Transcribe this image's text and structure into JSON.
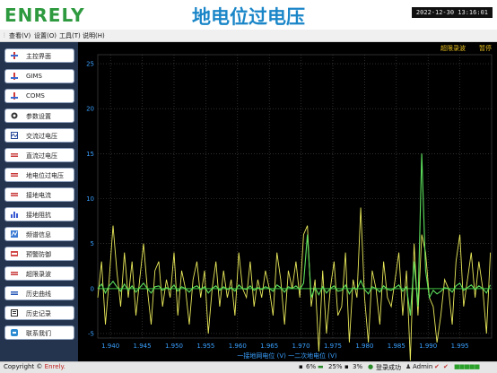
{
  "header": {
    "logo_text": "ENRELY",
    "title": "地电位过电压",
    "clock": "2022-12-30  13:16:01"
  },
  "menubar": {
    "items": [
      "查看(V)",
      "设置(O)",
      "工具(T)",
      "说明(H)"
    ]
  },
  "sidebar": {
    "items": [
      {
        "label": "主控界面",
        "icon": "monitor-icon"
      },
      {
        "label": "GIMS",
        "icon": "gims-icon"
      },
      {
        "label": "COMS",
        "icon": "coms-icon"
      },
      {
        "label": "参数设置",
        "icon": "gear-icon"
      },
      {
        "label": "交流过电压",
        "icon": "ac-overvoltage-icon"
      },
      {
        "label": "直流过电压",
        "icon": "dc-overvoltage-icon"
      },
      {
        "label": "地电位过电压",
        "icon": "ground-potential-icon"
      },
      {
        "label": "接地电流",
        "icon": "ground-current-icon"
      },
      {
        "label": "接地阻抗",
        "icon": "bar-chart-icon"
      },
      {
        "label": "频谱信息",
        "icon": "spectrum-icon"
      },
      {
        "label": "预警防御",
        "icon": "alert-icon"
      },
      {
        "label": "超限录波",
        "icon": "record-icon"
      },
      {
        "label": "历史曲线",
        "icon": "history-curve-icon"
      },
      {
        "label": "历史记录",
        "icon": "history-record-icon"
      },
      {
        "label": "联系我们",
        "icon": "contact-icon"
      }
    ]
  },
  "chart_controls": {
    "record_label": "超限录波",
    "pause_label": "暂停"
  },
  "chart_data": {
    "type": "line",
    "xlabel": "一接地网电位 (V)  一二次地电位 (V)",
    "xlim": [
      1.938,
      2.0
    ],
    "ylim": [
      -5.5,
      26
    ],
    "x_ticks": [
      "1.940",
      "1.945",
      "1.950",
      "1.955",
      "1.960",
      "1.965",
      "1.970",
      "1.975",
      "1.980",
      "1.985",
      "1.990",
      "1.995"
    ],
    "y_ticks": [
      "-5",
      "0",
      "5",
      "10",
      "15",
      "20",
      "25"
    ],
    "grid": true,
    "colors": {
      "background": "#000000",
      "grid": "#4a4a4a",
      "axis_text": "#3aa0ff",
      "series1": "#e8e85a",
      "series2": "#5ce05c",
      "zero": "#3fc03f"
    },
    "series": [
      {
        "x": [
          1.938,
          1.9386,
          1.9392,
          1.9398,
          1.9404,
          1.941,
          1.9416,
          1.9422,
          1.9428,
          1.9434,
          1.944,
          1.9446,
          1.9452,
          1.9458,
          1.9464,
          1.947,
          1.9476,
          1.9482,
          1.9488,
          1.9494,
          1.95,
          1.9506,
          1.9512,
          1.9518,
          1.9524,
          1.953,
          1.9536,
          1.9542,
          1.9548,
          1.9554,
          1.956,
          1.9566,
          1.9572,
          1.9578,
          1.9584,
          1.959,
          1.9596,
          1.9602,
          1.9608,
          1.9614,
          1.962,
          1.9626,
          1.9632,
          1.9638,
          1.9644,
          1.965,
          1.9656,
          1.9662,
          1.9668,
          1.9674,
          1.968,
          1.9686,
          1.9692,
          1.9698,
          1.9704,
          1.971,
          1.9716,
          1.9722,
          1.9728,
          1.9734,
          1.974,
          1.9746,
          1.9752,
          1.9758,
          1.9764,
          1.977,
          1.9776,
          1.9782,
          1.9788,
          1.9794,
          1.98,
          1.9806,
          1.9812,
          1.9818,
          1.9824,
          1.983,
          1.9836,
          1.9842,
          1.9848,
          1.9854,
          1.986,
          1.9866,
          1.9872,
          1.9878,
          1.9884,
          1.989,
          1.9896,
          1.9902,
          1.9908,
          1.9914,
          1.992,
          1.9926,
          1.9932,
          1.9938,
          1.9944,
          1.995,
          1.9956,
          1.9962,
          1.9968,
          1.9974,
          1.998,
          1.9986,
          1.9992,
          1.9998
        ],
        "y": [
          -1,
          3,
          -4,
          1,
          7,
          2,
          -2,
          4,
          -1,
          3,
          -3,
          1,
          5,
          0,
          -4,
          2,
          3,
          -2,
          1,
          -1,
          4,
          -3,
          2,
          0,
          -4,
          1,
          3,
          -1,
          2,
          -5,
          0,
          3,
          -2,
          2,
          -1,
          1,
          -3,
          4,
          0,
          -1,
          3,
          -2,
          1,
          -1,
          2,
          0,
          -3,
          4,
          1,
          -4,
          2,
          0,
          3,
          -1,
          6,
          7,
          -2,
          1,
          -7,
          2,
          -5,
          0,
          3,
          -3,
          -2,
          4,
          -6,
          1,
          -1,
          9,
          -1,
          -6,
          2,
          0,
          -4,
          3,
          -1,
          -2,
          1,
          4,
          -3,
          2,
          -8,
          5,
          -3,
          6,
          4,
          -1,
          -2,
          -6,
          -3,
          1,
          0,
          -4,
          3,
          6,
          -2,
          1,
          4,
          -1,
          3,
          0,
          -5,
          4
        ]
      },
      {
        "x": [
          1.938,
          1.9386,
          1.9392,
          1.9398,
          1.9404,
          1.941,
          1.9416,
          1.9422,
          1.9428,
          1.9434,
          1.944,
          1.9446,
          1.9452,
          1.9458,
          1.9464,
          1.947,
          1.9476,
          1.9482,
          1.9488,
          1.9494,
          1.95,
          1.9506,
          1.9512,
          1.9518,
          1.9524,
          1.953,
          1.9536,
          1.9542,
          1.9548,
          1.9554,
          1.956,
          1.9566,
          1.9572,
          1.9578,
          1.9584,
          1.959,
          1.9596,
          1.9602,
          1.9608,
          1.9614,
          1.962,
          1.9626,
          1.9632,
          1.9638,
          1.9644,
          1.965,
          1.9656,
          1.9662,
          1.9668,
          1.9674,
          1.968,
          1.9686,
          1.9692,
          1.9698,
          1.9704,
          1.971,
          1.9716,
          1.9722,
          1.9728,
          1.9734,
          1.974,
          1.9746,
          1.9752,
          1.9758,
          1.9764,
          1.977,
          1.9776,
          1.9782,
          1.9788,
          1.9794,
          1.98,
          1.9806,
          1.9812,
          1.9818,
          1.9824,
          1.983,
          1.9836,
          1.9842,
          1.9848,
          1.9854,
          1.986,
          1.9866,
          1.9872,
          1.9878,
          1.9884,
          1.989,
          1.9896,
          1.9902,
          1.9908,
          1.9914,
          1.992,
          1.9926,
          1.9932,
          1.9938,
          1.9944,
          1.995,
          1.9956,
          1.9962,
          1.9968,
          1.9974,
          1.998,
          1.9986,
          1.9992,
          1.9998
        ],
        "y": [
          0,
          0.5,
          -0.5,
          0.3,
          0.8,
          0.2,
          -0.3,
          0.5,
          -0.2,
          0.3,
          -0.4,
          0.1,
          0.6,
          0,
          -0.5,
          0.2,
          0.3,
          -0.2,
          0.1,
          -0.1,
          0.4,
          -0.3,
          0.2,
          0,
          -0.4,
          0.1,
          0.3,
          -0.1,
          0.2,
          -0.5,
          0,
          0.3,
          -0.2,
          0.2,
          -0.1,
          0.1,
          -0.3,
          0.4,
          0,
          -0.1,
          0.3,
          -0.2,
          0.1,
          -0.1,
          0.2,
          0,
          -0.3,
          0.4,
          0.1,
          -0.4,
          0.2,
          0,
          0.3,
          -0.1,
          0.6,
          6,
          -1,
          0.1,
          -0.7,
          0.2,
          -0.5,
          0,
          0.3,
          -0.3,
          -0.2,
          0.4,
          -0.6,
          0.1,
          -0.1,
          0.9,
          -0.1,
          -0.6,
          0.2,
          0,
          -0.4,
          0.3,
          -0.1,
          -0.2,
          0.1,
          0.4,
          -0.3,
          0.2,
          -3,
          3,
          -2,
          15,
          2,
          -1,
          -0.2,
          -0.6,
          -0.3,
          0.1,
          0,
          -0.4,
          0.3,
          0.6,
          -0.2,
          0.1,
          0.4,
          -0.1,
          0.3,
          0,
          -0.5,
          0.4
        ]
      }
    ]
  },
  "status": {
    "copyright_prefix": "Copyright ©",
    "copyright_brand": "Enrely.",
    "cpu": "6%",
    "memory": "25%",
    "disk": "3%",
    "login": "登录成功",
    "user": "Admin"
  }
}
